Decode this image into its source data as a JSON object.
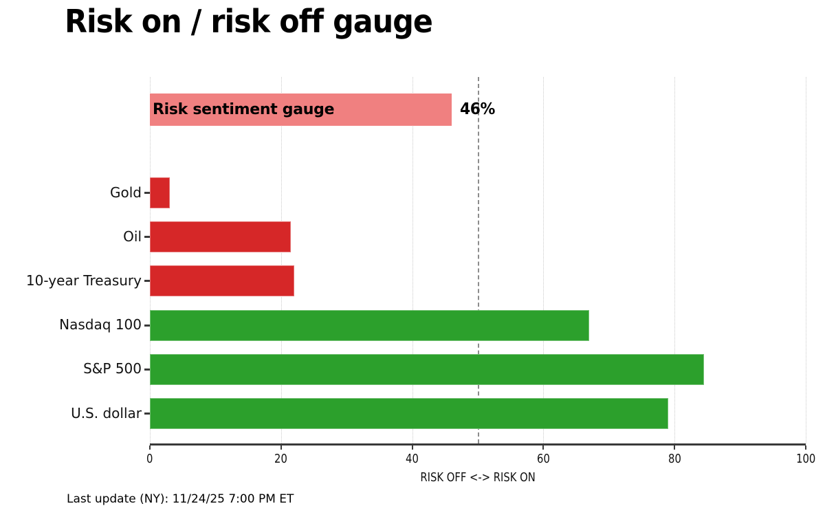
{
  "title": "Risk on / risk off gauge",
  "footer": "Last update (NY): 11/24/25 7:00 PM ET",
  "colors": {
    "gauge_pink": "#f08080",
    "risk_off_red": "#d62728",
    "risk_on_green": "#2ca02c",
    "gridline": "#c9c9c9",
    "reference_dash": "#8c8c8c",
    "axis_spine": "#3a3a3a"
  },
  "chart_data": {
    "type": "bar",
    "orientation": "horizontal",
    "title": "Risk on / risk off gauge",
    "xlabel": "RISK OFF <-> RISK ON",
    "xlim": [
      0,
      100
    ],
    "xticks": [
      0,
      20,
      40,
      60,
      80,
      100
    ],
    "grid": "vertical dotted gridlines at each x tick",
    "legend": "none",
    "reference_line": {
      "x": 50,
      "style": "dashed",
      "color": "#8c8c8c"
    },
    "gauge": {
      "label": "Risk sentiment gauge",
      "value": 46,
      "value_label": "46%",
      "color": "#f08080"
    },
    "categories": [
      "Gold",
      "Oil",
      "10-year Treasury",
      "Nasdaq 100",
      "S&P 500",
      "U.S. dollar"
    ],
    "values": [
      3,
      21.5,
      22,
      67,
      84.5,
      79
    ],
    "bar_colors": [
      "#d62728",
      "#d62728",
      "#d62728",
      "#2ca02c",
      "#2ca02c",
      "#2ca02c"
    ]
  }
}
